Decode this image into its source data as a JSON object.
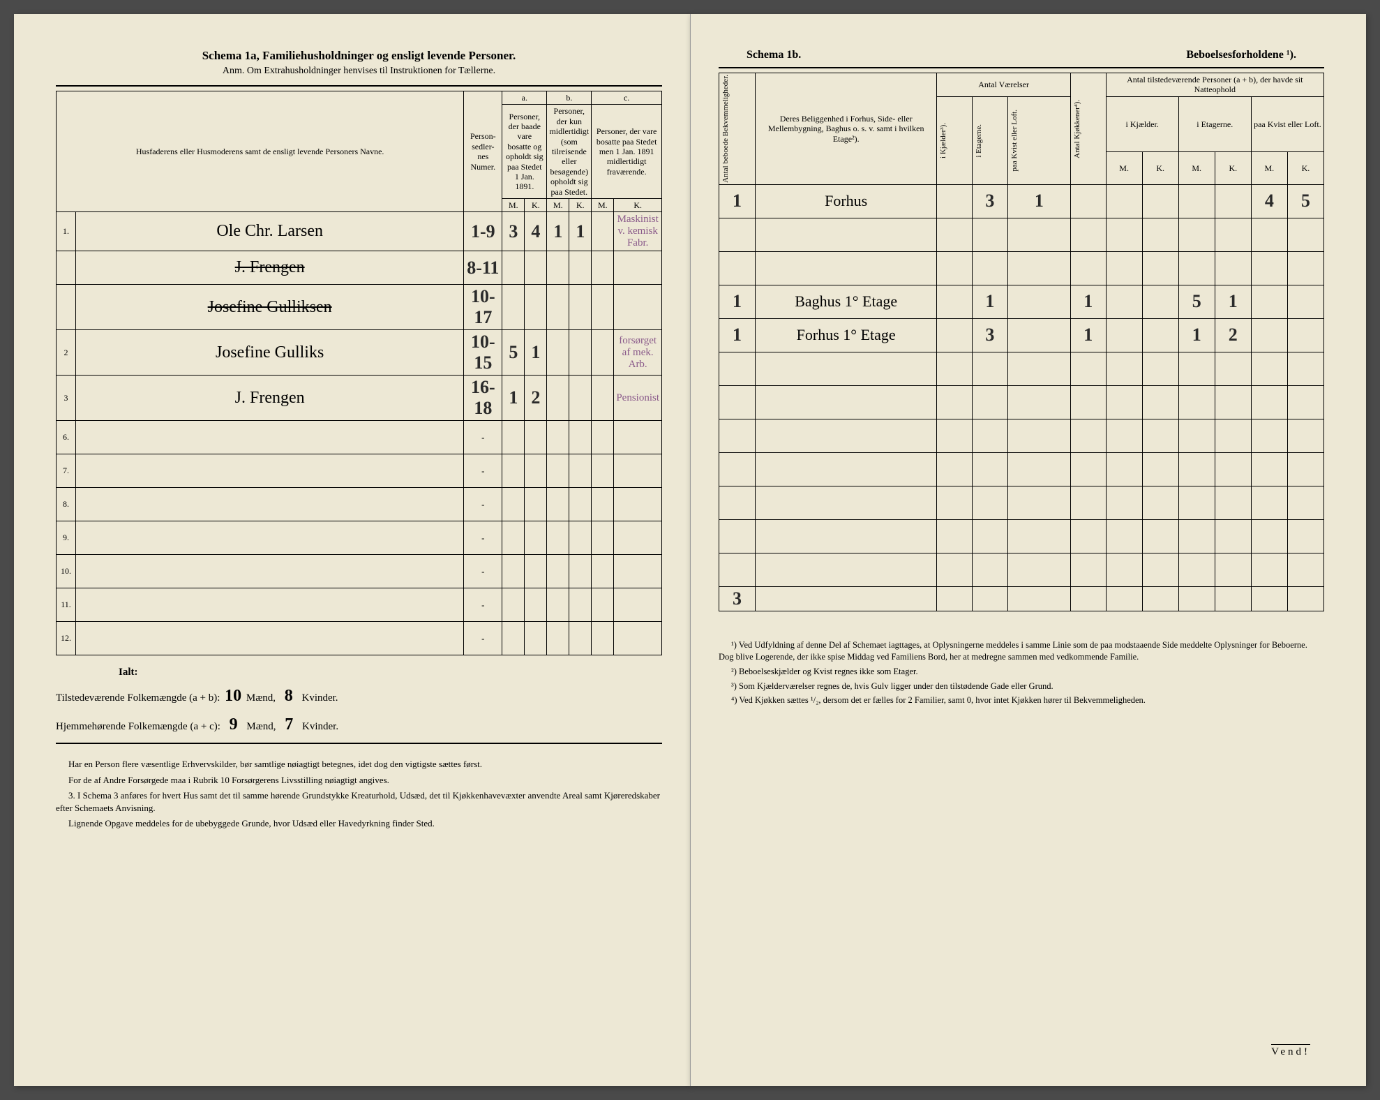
{
  "schema1a": {
    "title_a": "Schema 1a,",
    "title_b": "Familiehusholdninger og ensligt levende Personer.",
    "subtitle": "Anm. Om Extrahusholdninger henvises til Instruktionen for Tællerne.",
    "col_name": "Husfaderens eller Husmoderens samt de ensligt levende Personers Navne.",
    "col_numer": "Person-sedler-nes Numer.",
    "col_a_label": "a.",
    "col_a_text": "Personer, der baade vare bosatte og opholdt sig paa Stedet 1 Jan. 1891.",
    "col_b_label": "b.",
    "col_b_text": "Personer, der kun midlertidigt (som tilreisende eller besøgende) opholdt sig paa Stedet.",
    "col_c_label": "c.",
    "col_c_text": "Personer, der vare bosatte paa Stedet men 1 Jan. 1891 midlertidigt fraværende.",
    "mk_m": "M.",
    "mk_k": "K.",
    "rows": [
      {
        "num": "1.",
        "name": "Ole Chr. Larsen",
        "numer": "1-9",
        "aM": "3",
        "aK": "4",
        "bM": "1",
        "bK": "1",
        "cM": "",
        "cK": "",
        "note": "Maskinist v. kemisk Fabr."
      },
      {
        "num": "",
        "name": "J. Frengen",
        "numer": "8-11",
        "aM": "",
        "aK": "",
        "bM": "",
        "bK": "",
        "cM": "",
        "cK": "",
        "note": "",
        "struck": true
      },
      {
        "num": "",
        "name": "Josefine Gulliksen",
        "numer": "10-17",
        "aM": "",
        "aK": "",
        "bM": "",
        "bK": "",
        "cM": "",
        "cK": "",
        "note": "",
        "struck": true
      },
      {
        "num": "2",
        "name": "Josefine Gulliks",
        "numer": "10-15",
        "aM": "5",
        "aK": "1",
        "bM": "",
        "bK": "",
        "cM": "",
        "cK": "",
        "note": "forsørget af mek. Arb."
      },
      {
        "num": "3",
        "name": "J. Frengen",
        "numer": "16-18",
        "aM": "1",
        "aK": "2",
        "bM": "",
        "bK": "",
        "cM": "",
        "cK": "",
        "note": "Pensionist"
      }
    ],
    "empty_rows": [
      "6.",
      "7.",
      "8.",
      "9.",
      "10.",
      "11.",
      "12."
    ],
    "ialt": "Ialt:",
    "summary1_pre": "Tilstedeværende Folkemængde (a + b):",
    "summary1_m": "10",
    "summary1_mid": "Mænd,",
    "summary1_k": "8",
    "summary1_end": "Kvinder.",
    "summary2_pre": "Hjemmehørende Folkemængde (a + c):",
    "summary2_m": "9",
    "summary2_mid": "Mænd,",
    "summary2_k": "7",
    "summary2_end": "Kvinder.",
    "notes": [
      "Har en Person flere væsentlige Erhvervskilder, bør samtlige nøiagtigt betegnes, idet dog den vigtigste sættes først.",
      "For de af Andre Forsørgede maa i Rubrik 10 Forsørgerens Livsstilling nøiagtigt angives.",
      "3. I Schema 3 anføres for hvert Hus samt det til samme hørende Grundstykke Kreaturhold, Udsæd, det til Kjøkkenhavevæxter anvendte Areal samt Kjøreredskaber efter Schemaets Anvisning.",
      "Lignende Opgave meddeles for de ubebyggede Grunde, hvor Udsæd eller Havedyrkning finder Sted."
    ]
  },
  "schema1b": {
    "title_left": "Schema 1b.",
    "title_right": "Beboelsesforholdene ¹).",
    "col_bekv": "Antal beboede Bekvemmeligheder.",
    "col_belig": "Deres Beliggenhed i Forhus, Side- eller Mellembygning, Baghus o. s. v. samt i hvilken Etage²).",
    "col_vaer": "Antal Værelser",
    "col_kjael": "i Kjælder³).",
    "col_etag": "i Etagerne.",
    "col_kvist": "paa Kvist eller Loft.",
    "col_kjok": "Antal Kjøkkener⁴).",
    "col_tilst": "Antal tilstedeværende Personer (a + b), der havde sit Natteophold",
    "col_tilst_kjael": "i Kjælder.",
    "col_tilst_etag": "i Etagerne.",
    "col_tilst_kvist": "paa Kvist eller Loft.",
    "mk_m": "M.",
    "mk_k": "K.",
    "rows": [
      {
        "bekv": "1",
        "belig": "Forhus",
        "vk": "",
        "ve": "3",
        "vkv": "1",
        "kjok": "",
        "nkM": "",
        "nkK": "",
        "neM": "",
        "neK": "",
        "nkvM": "4",
        "nkvK": "5"
      },
      {
        "bekv": "",
        "belig": "",
        "vk": "",
        "ve": "",
        "vkv": "",
        "kjok": "",
        "nkM": "",
        "nkK": "",
        "neM": "",
        "neK": "",
        "nkvM": "",
        "nkvK": ""
      },
      {
        "bekv": "",
        "belig": "",
        "vk": "",
        "ve": "",
        "vkv": "",
        "kjok": "",
        "nkM": "",
        "nkK": "",
        "neM": "",
        "neK": "",
        "nkvM": "",
        "nkvK": ""
      },
      {
        "bekv": "1",
        "belig": "Baghus 1° Etage",
        "vk": "",
        "ve": "1",
        "vkv": "",
        "kjok": "1",
        "nkM": "",
        "nkK": "",
        "neM": "5",
        "neK": "1",
        "nkvM": "",
        "nkvK": ""
      },
      {
        "bekv": "1",
        "belig": "Forhus 1° Etage",
        "vk": "",
        "ve": "3",
        "vkv": "",
        "kjok": "1",
        "nkM": "",
        "nkK": "",
        "neM": "1",
        "neK": "2",
        "nkvM": "",
        "nkvK": ""
      }
    ],
    "empty_rows": 7,
    "ialt_row": {
      "bekv": "3"
    },
    "footnotes": [
      "¹) Ved Udfyldning af denne Del af Schemaet iagttages, at Oplysningerne meddeles i samme Linie som de paa modstaaende Side meddelte Oplysninger for Beboerne. Dog blive Logerende, der ikke spise Middag ved Familiens Bord, her at medregne sammen med vedkommende Familie.",
      "²) Beboelseskjælder og Kvist regnes ikke som Etager.",
      "³) Som Kjælderværelser regnes de, hvis Gulv ligger under den tilstødende Gade eller Grund.",
      "⁴) Ved Kjøkken sættes ¹/₂, dersom det er fælles for 2 Familier, samt 0, hvor intet Kjøkken hører til Bekvemmeligheden."
    ],
    "vend": "Vend!"
  }
}
